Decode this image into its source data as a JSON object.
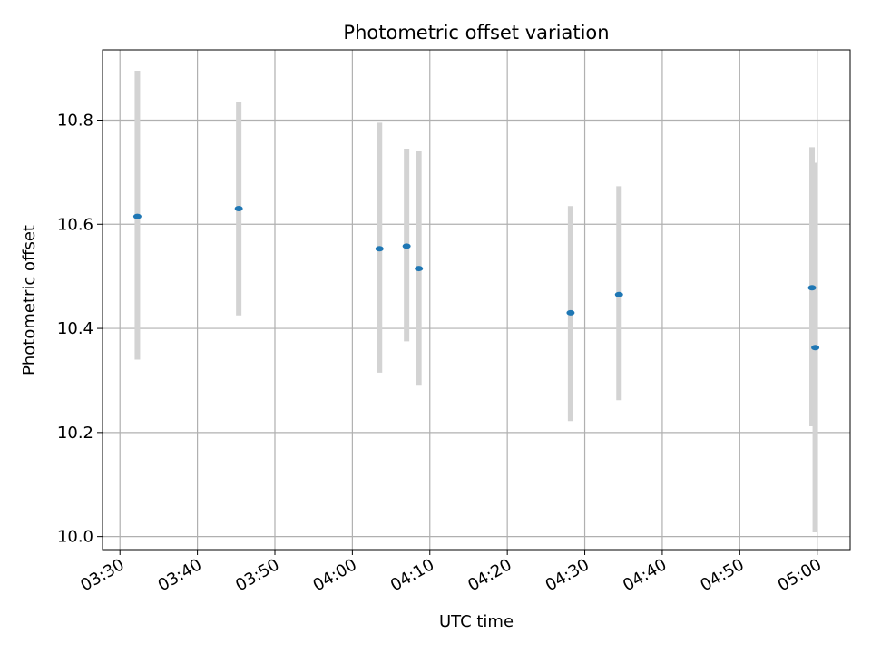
{
  "chart_data": {
    "type": "scatter",
    "title": "Photometric offset variation",
    "xlabel": "UTC time",
    "ylabel": "Photometric offset",
    "xlim": [
      "03:27:45",
      "05:04:15"
    ],
    "ylim": [
      9.975,
      10.935
    ],
    "grid": true,
    "xticks": [
      "03:30",
      "03:40",
      "03:50",
      "04:00",
      "04:10",
      "04:20",
      "04:30",
      "04:40",
      "04:50",
      "05:00"
    ],
    "yticks": [
      "10.0",
      "10.2",
      "10.4",
      "10.6",
      "10.8"
    ],
    "points": [
      {
        "time": "03:32:15",
        "value": 10.615,
        "err_low": 10.34,
        "err_high": 10.895
      },
      {
        "time": "03:45:20",
        "value": 10.63,
        "err_low": 10.425,
        "err_high": 10.835
      },
      {
        "time": "04:03:30",
        "value": 10.553,
        "err_low": 10.315,
        "err_high": 10.795
      },
      {
        "time": "04:07:00",
        "value": 10.558,
        "err_low": 10.375,
        "err_high": 10.745
      },
      {
        "time": "04:08:35",
        "value": 10.515,
        "err_low": 10.29,
        "err_high": 10.74
      },
      {
        "time": "04:28:10",
        "value": 10.43,
        "err_low": 10.222,
        "err_high": 10.635
      },
      {
        "time": "04:34:25",
        "value": 10.465,
        "err_low": 10.262,
        "err_high": 10.673
      },
      {
        "time": "04:59:20",
        "value": 10.478,
        "err_low": 10.212,
        "err_high": 10.748
      },
      {
        "time": "04:59:45",
        "value": 10.363,
        "err_low": 10.008,
        "err_high": 10.718
      }
    ],
    "colors": {
      "marker": "#1f77b4",
      "errorbar": "#d3d3d3",
      "grid": "#b0b0b0",
      "axis": "#000000"
    }
  }
}
